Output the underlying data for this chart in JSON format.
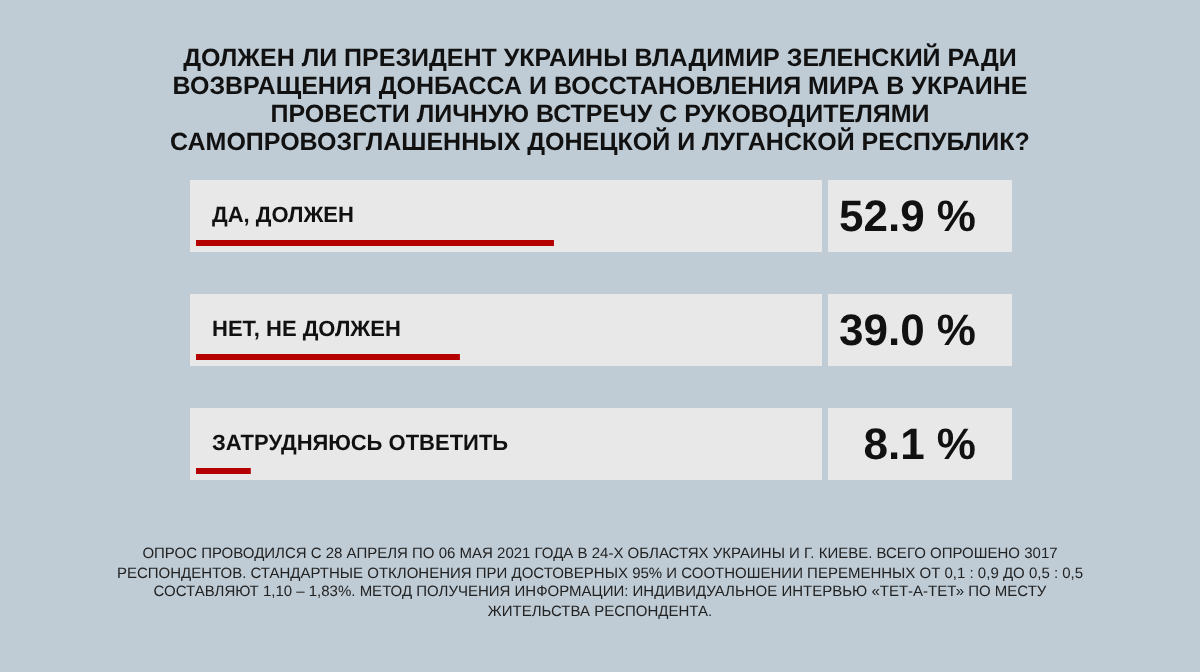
{
  "chart_data": {
    "type": "bar",
    "orientation": "horizontal",
    "title": "ДОЛЖЕН ЛИ ПРЕЗИДЕНТ УКРАИНЫ ВЛАДИМИР ЗЕЛЕНСКИЙ РАДИ ВОЗВРАЩЕНИЯ ДОНБАССА И ВОССТАНОВЛЕНИЯ МИРА В УКРАИНЕ ПРОВЕСТИ ЛИЧНУЮ ВСТРЕЧУ С РУКОВОДИТЕЛЯМИ САМОПРОВОЗГЛАШЕННЫХ ДОНЕЦКОЙ И ЛУГАНСКОЙ РЕСПУБЛИК?",
    "categories": [
      "ДА, ДОЛЖЕН",
      "НЕТ, НЕ ДОЛЖЕН",
      "ЗАТРУДНЯЮСЬ ОТВЕТИТЬ"
    ],
    "values": [
      52.9,
      39.0,
      8.1
    ],
    "value_labels": [
      "52.9 %",
      "39.0 %",
      "8.1 %"
    ],
    "color": "#b50000",
    "annotations": [
      "ОПРОС ПРОВОДИЛСЯ С 28 АПРЕЛЯ ПО 06 МАЯ 2021 ГОДА В 24-Х ОБЛАСТЯХ УКРАИНЫ И Г. КИЕВЕ. ВСЕГО ОПРОШЕНО 3017 РЕСПОНДЕНТОВ. СТАНДАРТНЫЕ ОТКЛОНЕНИЯ ПРИ ДОСТОВЕРНЫХ 95% И СООТНОШЕНИИ ПЕРЕМЕННЫХ ОТ 0,1 : 0,9 ДО 0,5 : 0,5 СОСТАВЛЯЮТ 1,10 – 1,83%. МЕТОД ПОЛУЧЕНИЯ ИНФОРМАЦИИ: ИНДИВИДУАЛЬНОЕ ИНТЕРВЬЮ «ТЕТ-А-ТЕТ» ПО МЕСТУ ЖИТЕЛЬСТВА РЕСПОНДЕНТА."
    ]
  }
}
